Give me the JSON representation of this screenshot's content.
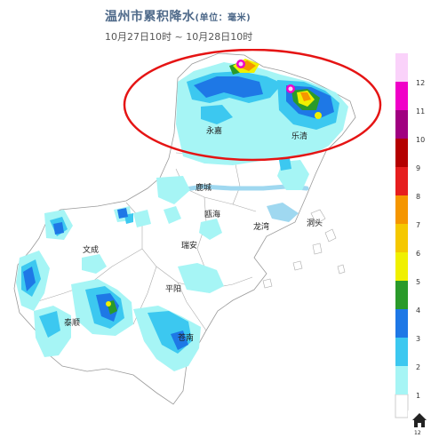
{
  "header": {
    "title": "温州市累积降水",
    "unit": "(单位：毫米)",
    "period": "10月27日10时 ~ 10月28日10时"
  },
  "map_labels": {
    "yongjia": "永嘉",
    "yueqing": "乐清",
    "lucheng": "鹿城",
    "ouhai": "瓯海",
    "longwan": "龙湾",
    "dongtou": "洞头",
    "wencheng": "文成",
    "ruian": "瑞安",
    "pingyang": "平阳",
    "taishun": "泰顺",
    "cangnan": "苍南"
  },
  "legend": {
    "levels": [
      "1",
      "2",
      "3",
      "4",
      "5",
      "6",
      "7",
      "8",
      "9",
      "10",
      "11",
      "12"
    ],
    "colors": [
      "#a6f5f5",
      "#3cc8f0",
      "#1e78e6",
      "#2a9a2a",
      "#f0f000",
      "#f5c800",
      "#f59600",
      "#e61e1e",
      "#b40000",
      "#a00080",
      "#f000c8",
      "#fad2fa"
    ]
  },
  "controls": {
    "home_label": "12",
    "home_icon": "home-icon"
  }
}
